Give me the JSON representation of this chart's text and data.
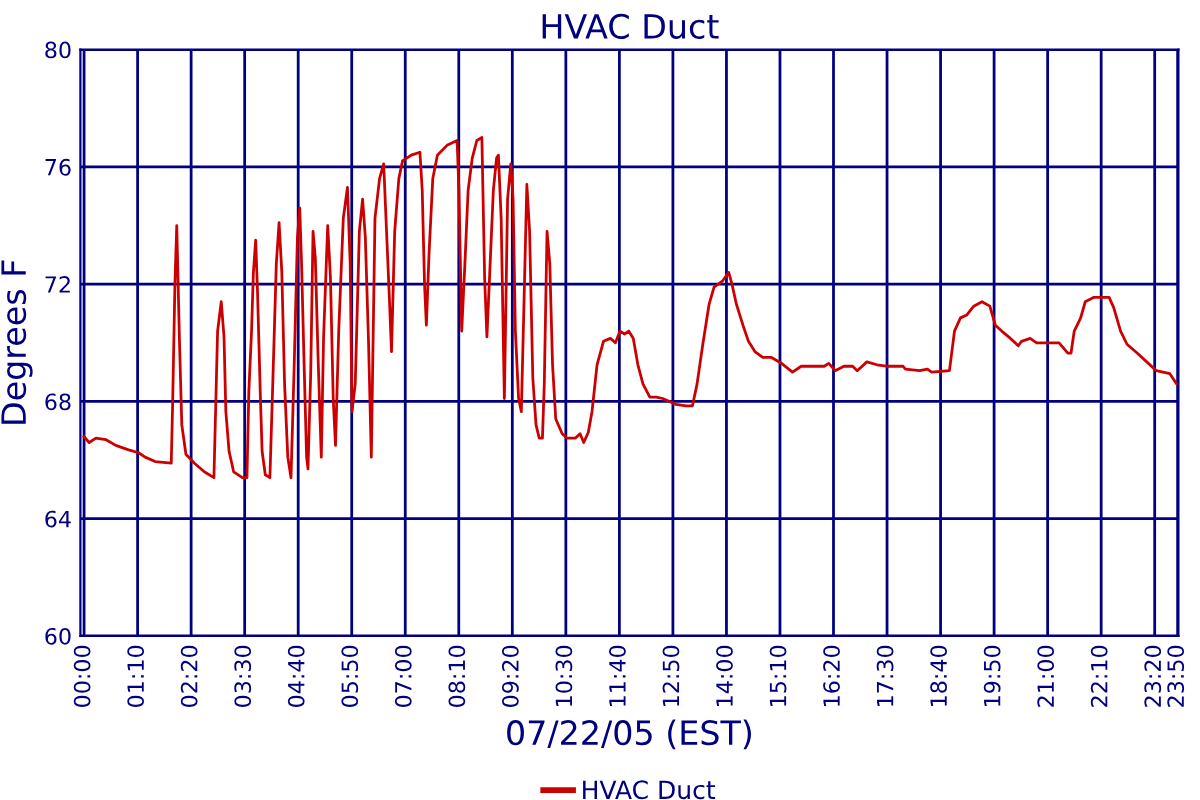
{
  "chart_data": {
    "type": "line",
    "title": "HVAC Duct",
    "xlabel": "07/22/05 (EST)",
    "ylabel": "Degrees F",
    "x": [
      0,
      0.11,
      0.26,
      0.47,
      0.69,
      0.97,
      1.19,
      1.33,
      1.55,
      1.9,
      1.93,
      1.98,
      2.02,
      2.08,
      2.13,
      2.22,
      2.4,
      2.62,
      2.83,
      2.91,
      2.99,
      3.05,
      3.09,
      3.16,
      3.26,
      3.45,
      3.55,
      3.59,
      3.65,
      3.69,
      3.74,
      3.78,
      3.84,
      3.88,
      3.95,
      4.05,
      4.12,
      4.19,
      4.25,
      4.31,
      4.37,
      4.44,
      4.51,
      4.58,
      4.65,
      4.7,
      4.74,
      4.8,
      4.85,
      4.88,
      4.94,
      4.99,
      5.04,
      5.1,
      5.17,
      5.22,
      5.31,
      5.37,
      5.43,
      5.48,
      5.55,
      5.65,
      5.74,
      5.8,
      5.84,
      5.91,
      6.0,
      6.07,
      6.13,
      6.2,
      6.26,
      6.34,
      6.44,
      6.53,
      6.58,
      6.66,
      6.7,
      6.77,
      6.86,
      6.94,
      7.13,
      7.32,
      7.37,
      7.42,
      7.46,
      7.52,
      7.6,
      7.7,
      7.92,
      8.13,
      8.17,
      8.23,
      8.3,
      8.37,
      8.46,
      8.56,
      8.67,
      8.73,
      8.78,
      8.85,
      8.92,
      8.99,
      9.03,
      9.09,
      9.16,
      9.23,
      9.3,
      9.35,
      9.4,
      9.47,
      9.53,
      9.59,
      9.65,
      9.71,
      9.78,
      9.85,
      9.92,
      9.99,
      10.03,
      10.09,
      10.15,
      10.21,
      10.28,
      10.42,
      10.52,
      10.71,
      10.81,
      10.89,
      10.99,
      11.07,
      11.18,
      11.32,
      11.47,
      11.58,
      11.68,
      11.78,
      11.87,
      11.97,
      12.07,
      12.18,
      12.33,
      12.47,
      12.61,
      12.76,
      12.9,
      13.12,
      13.26,
      13.36,
      13.48,
      13.62,
      13.73,
      13.91,
      14.05,
      14.12,
      14.22,
      14.36,
      14.48,
      14.62,
      14.79,
      14.98,
      15.2,
      15.44,
      15.63,
      16.13,
      16.23,
      16.37,
      16.56,
      16.75,
      16.85,
      17.06,
      17.28,
      17.52,
      17.85,
      17.9,
      18.21,
      18.38,
      18.47,
      18.86,
      18.97,
      19.1,
      19.24,
      19.39,
      19.57,
      19.74,
      19.86,
      20.0,
      20.19,
      20.36,
      20.43,
      20.62,
      20.76,
      20.94,
      21.25,
      21.44,
      21.51,
      21.58,
      21.72,
      21.82,
      22.01,
      22.34,
      22.44,
      22.59,
      22.73,
      22.95,
      23.16,
      23.37,
      23.66,
      23.81
    ],
    "series": [
      {
        "name": "HVAC Duct",
        "color": "#cc0000",
        "values": [
          66.8,
          66.6,
          66.75,
          66.7,
          66.5,
          66.35,
          66.25,
          66.1,
          65.95,
          65.9,
          67.9,
          72.0,
          74.0,
          70.0,
          67.2,
          66.2,
          65.9,
          65.6,
          65.4,
          70.4,
          71.4,
          70.2,
          67.65,
          66.3,
          65.6,
          65.4,
          65.4,
          68.3,
          70.4,
          72.4,
          73.5,
          71.75,
          68.3,
          66.3,
          65.5,
          65.4,
          69.0,
          72.7,
          74.1,
          72.4,
          68.6,
          66.1,
          65.4,
          69.25,
          73.6,
          74.6,
          72.7,
          69.0,
          66.1,
          65.7,
          69.0,
          73.8,
          72.9,
          69.5,
          66.1,
          70.2,
          74.0,
          72.2,
          68.1,
          66.5,
          70.4,
          74.25,
          75.3,
          72.7,
          67.65,
          68.6,
          73.8,
          74.9,
          73.6,
          70.0,
          66.1,
          74.25,
          75.6,
          76.1,
          74.25,
          71.3,
          69.7,
          73.8,
          75.6,
          76.2,
          76.4,
          76.5,
          75.2,
          72.0,
          70.6,
          73.1,
          75.6,
          76.4,
          76.75,
          76.9,
          75.2,
          70.4,
          72.7,
          75.2,
          76.3,
          76.9,
          77.0,
          72.2,
          70.2,
          72.7,
          75.2,
          76.3,
          76.4,
          74.25,
          68.1,
          74.9,
          76.1,
          74.9,
          70.4,
          68.1,
          67.65,
          71.5,
          75.4,
          73.8,
          68.8,
          67.2,
          66.75,
          66.75,
          68.6,
          73.8,
          72.7,
          69.25,
          67.4,
          66.9,
          66.75,
          66.75,
          66.9,
          66.6,
          66.95,
          67.65,
          69.25,
          70.05,
          70.15,
          70.0,
          70.4,
          70.3,
          70.4,
          70.15,
          69.25,
          68.6,
          68.15,
          68.15,
          68.1,
          68.0,
          67.9,
          67.85,
          67.85,
          68.6,
          69.9,
          71.3,
          71.9,
          72.1,
          72.4,
          72.0,
          71.3,
          70.6,
          70.05,
          69.7,
          69.5,
          69.5,
          69.3,
          69.0,
          69.2,
          69.2,
          69.3,
          69.05,
          69.2,
          69.2,
          69.05,
          69.35,
          69.25,
          69.2,
          69.2,
          69.1,
          69.05,
          69.1,
          69.0,
          69.05,
          70.4,
          70.85,
          70.95,
          71.25,
          71.4,
          71.25,
          70.6,
          70.4,
          70.15,
          69.9,
          70.05,
          70.15,
          70.0,
          70.0,
          70.0,
          69.65,
          69.65,
          70.4,
          70.85,
          71.4,
          71.55,
          71.55,
          71.2,
          70.4,
          69.95,
          69.65,
          69.35,
          69.05,
          68.95,
          68.6
        ]
      }
    ],
    "xlim": [
      -0.08,
      23.85
    ],
    "xticks": [
      {
        "value": 0,
        "label": "00:00"
      },
      {
        "value": 1.1667,
        "label": "01:10"
      },
      {
        "value": 2.3333,
        "label": "02:20"
      },
      {
        "value": 3.5,
        "label": "03:30"
      },
      {
        "value": 4.6667,
        "label": "04:40"
      },
      {
        "value": 5.8333,
        "label": "05:50"
      },
      {
        "value": 7,
        "label": "07:00"
      },
      {
        "value": 8.1667,
        "label": "08:10"
      },
      {
        "value": 9.3333,
        "label": "09:20"
      },
      {
        "value": 10.5,
        "label": "10:30"
      },
      {
        "value": 11.6667,
        "label": "11:40"
      },
      {
        "value": 12.8333,
        "label": "12:50"
      },
      {
        "value": 14,
        "label": "14:00"
      },
      {
        "value": 15.1667,
        "label": "15:10"
      },
      {
        "value": 16.3333,
        "label": "16:20"
      },
      {
        "value": 17.5,
        "label": "17:30"
      },
      {
        "value": 18.6667,
        "label": "18:40"
      },
      {
        "value": 19.8333,
        "label": "19:50"
      },
      {
        "value": 21,
        "label": "21:00"
      },
      {
        "value": 22.1667,
        "label": "22:10"
      },
      {
        "value": 23.3333,
        "label": "23:20"
      },
      {
        "value": 23.8333,
        "label": "23:50"
      }
    ],
    "ylim": [
      60,
      80
    ],
    "yticks": [
      60,
      64,
      68,
      72,
      76,
      80
    ],
    "grid": true,
    "legend": "bottom",
    "marker": "none",
    "line_style": "solid"
  }
}
